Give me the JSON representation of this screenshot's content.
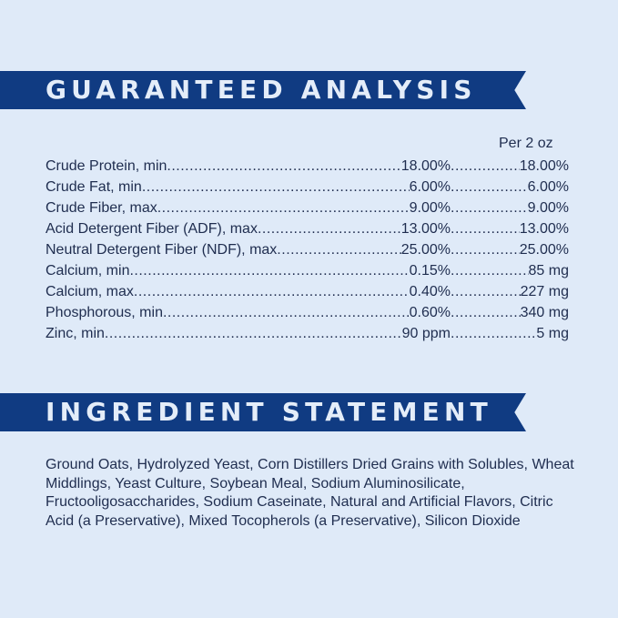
{
  "analysis": {
    "heading": "GUARANTEED ANALYSIS",
    "column_header": "Per 2 oz",
    "rows": [
      {
        "label": "Crude Protein, min",
        "percent": "18.00%",
        "per_serving": "18.00%"
      },
      {
        "label": "Crude Fat, min",
        "percent": "6.00%",
        "per_serving": "6.00%"
      },
      {
        "label": "Crude Fiber, max",
        "percent": "9.00%",
        "per_serving": "9.00%"
      },
      {
        "label": "Acid Detergent Fiber (ADF), max",
        "percent": "13.00%",
        "per_serving": "13.00%"
      },
      {
        "label": "Neutral Detergent Fiber (NDF), max",
        "percent": "25.00%",
        "per_serving": "25.00%"
      },
      {
        "label": "Calcium, min",
        "percent": "0.15%",
        "per_serving": "85 mg"
      },
      {
        "label": "Calcium, max",
        "percent": "0.40%",
        "per_serving": "227 mg"
      },
      {
        "label": "Phosphorous, min",
        "percent": "0.60%",
        "per_serving": "340 mg"
      },
      {
        "label": "Zinc, min",
        "percent": "90 ppm",
        "per_serving": "5 mg"
      }
    ]
  },
  "ingredients": {
    "heading": "INGREDIENT STATEMENT",
    "text": "Ground Oats, Hydrolyzed Yeast, Corn Distillers Dried Grains with Solubles, Wheat Middlings, Yeast Culture, Soybean Meal, Sodium Aluminosilicate, Fructooligosaccharides, Sodium Caseinate, Natural and Artificial Flavors, Citric Acid (a Preservative), Mixed Tocopherols (a Preservative), Silicon Dioxide"
  },
  "colors": {
    "background": "#dfeaf8",
    "banner": "#103b82",
    "text": "#1f2d4f"
  }
}
